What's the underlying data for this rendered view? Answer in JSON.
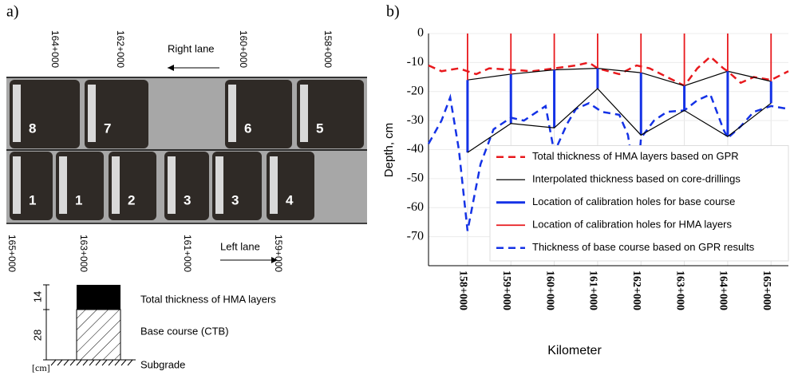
{
  "panel_a": {
    "label": "a)",
    "top_km": [
      "164+000",
      "162+000",
      "160+000",
      "158+000"
    ],
    "right_lane": "Right lane",
    "top_cores": [
      "8",
      "7",
      "6",
      "5"
    ],
    "bottom_cores": [
      "1",
      "1",
      "2",
      "3",
      "3",
      "4"
    ],
    "bottom_km": [
      "165+000",
      "163+000",
      "161+000",
      "159+000"
    ],
    "left_lane": "Left lane",
    "section": {
      "dims": [
        "14",
        "28"
      ],
      "unit": "[cm]",
      "layers": [
        "Total thickness of HMA layers",
        "Base course (CTB)",
        "Subgrade"
      ]
    }
  },
  "panel_b_label": "b)",
  "chart_data": {
    "type": "line",
    "xlabel": "Kilometer",
    "ylabel": "Depth, cm",
    "xlim": [
      157.1,
      165.4
    ],
    "ylim": [
      -80,
      0
    ],
    "xticks": [
      {
        "value": 158,
        "label": "158+000"
      },
      {
        "value": 159,
        "label": "159+000"
      },
      {
        "value": 160,
        "label": "160+000"
      },
      {
        "value": 161,
        "label": "161+000"
      },
      {
        "value": 162,
        "label": "162+000"
      },
      {
        "value": 163,
        "label": "163+000"
      },
      {
        "value": 164,
        "label": "164+000"
      },
      {
        "value": 165,
        "label": "165+000"
      }
    ],
    "yticks": [
      0,
      -10,
      -20,
      -30,
      -40,
      -50,
      -60,
      -70
    ],
    "grid": true,
    "legend": "lower right",
    "series": [
      {
        "name": "Total thickness of HMA layers based on GPR",
        "color": "#e8191d",
        "style": "dashed",
        "x": [
          157.1,
          157.4,
          157.8,
          158.2,
          158.5,
          159,
          159.5,
          160,
          160.5,
          160.8,
          161,
          161.5,
          161.9,
          162.2,
          162.6,
          163,
          163.3,
          163.6,
          163.9,
          164,
          164.3,
          164.6,
          165,
          165.4
        ],
        "values": [
          -11,
          -13,
          -12,
          -14,
          -12,
          -12.5,
          -13,
          -12,
          -11,
          -10,
          -12,
          -14,
          -11,
          -12,
          -15,
          -18,
          -12,
          -8,
          -12,
          -13,
          -17,
          -15,
          -16,
          -13
        ]
      },
      {
        "name": "Interpolated thickness based on core-drillings",
        "color": "#000000",
        "style": "solid",
        "x": [
          158,
          159,
          160,
          161,
          162,
          163,
          164,
          165
        ],
        "values": [
          -16,
          -14,
          -12.5,
          -12,
          -13.5,
          -18,
          -13,
          -16.5
        ]
      },
      {
        "name": "Location of calibration holes for base course",
        "color": "#1432e6",
        "style": "vlines",
        "x": [
          158,
          159,
          160,
          161,
          162,
          163,
          164,
          165
        ],
        "from": [
          -16,
          -14,
          -12.5,
          -12,
          -13.5,
          -18,
          -13,
          -16.5
        ],
        "values": [
          -41,
          -31,
          -32.5,
          -19,
          -35,
          -26.5,
          -35.5,
          -24
        ]
      },
      {
        "name": "Location of calibration holes for HMA layers",
        "color": "#e8191d",
        "style": "vlines",
        "x": [
          158,
          159,
          160,
          161,
          162,
          163,
          164,
          165
        ],
        "values": [
          -16,
          -14,
          -12.5,
          -12,
          -13.5,
          -18,
          -13,
          -16.5
        ]
      },
      {
        "name": "Thickness of base course based on GPR results",
        "color": "#1432e6",
        "style": "dashed",
        "x": [
          157.1,
          157.4,
          157.6,
          157.8,
          158,
          158.3,
          158.6,
          159,
          159.3,
          159.6,
          159.8,
          160,
          160.3,
          160.5,
          160.8,
          161.1,
          161.5,
          161.7,
          161.9,
          162,
          162.3,
          162.6,
          163,
          163.3,
          163.6,
          163.9,
          164,
          164.3,
          164.6,
          165,
          165.4
        ],
        "values": [
          -38,
          -30,
          -22,
          -40,
          -68,
          -45,
          -33,
          -29,
          -30,
          -27,
          -25,
          -41,
          -31,
          -26,
          -24,
          -27,
          -28,
          -35,
          -55,
          -36,
          -30,
          -27,
          -26.5,
          -23,
          -21,
          -33,
          -36,
          -32,
          -27,
          -25,
          -26
        ]
      },
      {
        "color": "#000000",
        "style": "solid",
        "x": [
          158,
          159,
          160,
          161,
          162,
          163,
          164,
          165
        ],
        "values": [
          -41,
          -31,
          -32.5,
          -19,
          -35,
          -26.5,
          -35.5,
          -24
        ]
      }
    ]
  }
}
